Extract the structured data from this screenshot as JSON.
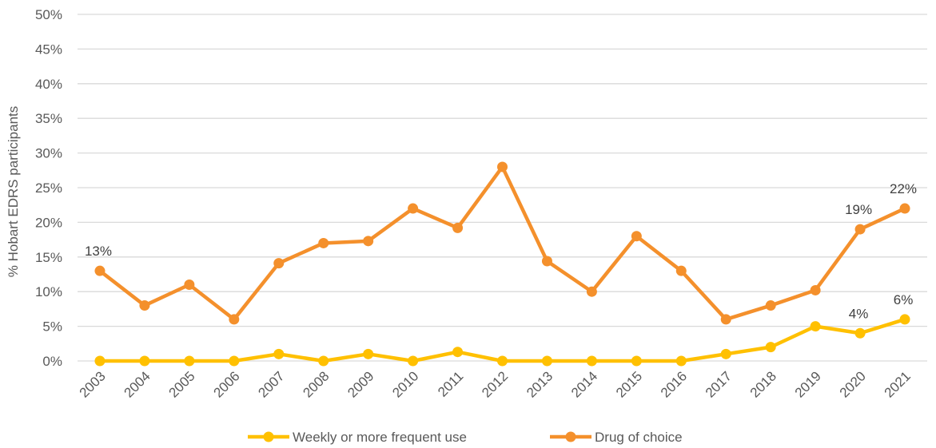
{
  "chart_data": {
    "type": "line",
    "title": "",
    "xlabel": "",
    "ylabel": "% Hobart EDRS participants",
    "ylim": [
      0,
      50
    ],
    "y_ticks": [
      0,
      5,
      10,
      15,
      20,
      25,
      30,
      35,
      40,
      45,
      50
    ],
    "y_tick_format": "%",
    "categories": [
      "2003",
      "2004",
      "2005",
      "2006",
      "2007",
      "2008",
      "2009",
      "2010",
      "2011",
      "2012",
      "2013",
      "2014",
      "2015",
      "2016",
      "2017",
      "2018",
      "2019",
      "2020",
      "2021"
    ],
    "series": [
      {
        "name": "Weekly or more frequent use",
        "color": "#FFC000",
        "values": [
          0,
          0,
          0,
          0,
          1,
          0,
          1,
          0,
          1.3,
          0,
          0,
          0,
          0,
          0,
          1,
          2,
          5,
          4,
          6
        ]
      },
      {
        "name": "Drug of choice",
        "color": "#F4902C",
        "values": [
          13,
          8,
          11,
          6,
          14.1,
          17,
          17.3,
          22,
          19.2,
          28,
          14.4,
          10,
          18,
          13,
          6,
          8,
          10.2,
          19,
          22
        ]
      }
    ],
    "data_labels": [
      {
        "series": 1,
        "index": 0,
        "text": "13%"
      },
      {
        "series": 1,
        "index": 17,
        "text": "19%"
      },
      {
        "series": 1,
        "index": 18,
        "text": "22%"
      },
      {
        "series": 0,
        "index": 17,
        "text": "4%"
      },
      {
        "series": 0,
        "index": 18,
        "text": "6%"
      }
    ],
    "grid": true,
    "legend_position": "bottom"
  }
}
